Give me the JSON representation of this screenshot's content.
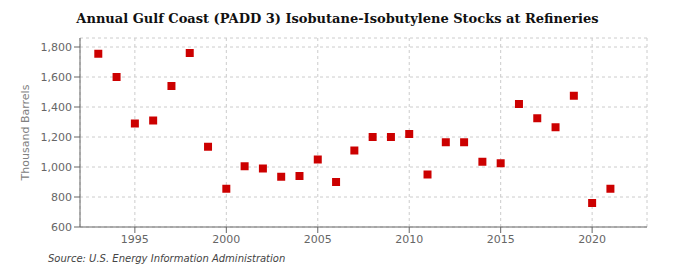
{
  "chart_data": {
    "type": "scatter",
    "title": "Annual Gulf Coast (PADD 3) Isobutane-Isobutylene Stocks at Refineries",
    "ylabel": "Thousand Barrels",
    "annotations": [
      "Source: U.S. Energy Information Administration"
    ],
    "x": [
      1993,
      1994,
      1995,
      1996,
      1997,
      1998,
      1999,
      2000,
      2001,
      2002,
      2003,
      2004,
      2005,
      2006,
      2007,
      2008,
      2009,
      2010,
      2011,
      2012,
      2013,
      2014,
      2015,
      2016,
      2017,
      2018,
      2019,
      2020,
      2021
    ],
    "values": [
      1755,
      1600,
      1290,
      1310,
      1540,
      1760,
      1135,
      855,
      1005,
      990,
      935,
      940,
      1050,
      900,
      1110,
      1200,
      1200,
      1220,
      950,
      1165,
      1165,
      1035,
      1025,
      1420,
      1325,
      1265,
      1475,
      760,
      855
    ],
    "color": "#cc0000",
    "marker": "square",
    "xlim": [
      1992.0,
      2023.0
    ],
    "xticks": [
      1995,
      2000,
      2005,
      2010,
      2015,
      2020
    ],
    "ylim": [
      600,
      1860
    ],
    "yticks": [
      600,
      800,
      {
        "value": 1000,
        "label": "1,000"
      },
      {
        "value": 1200,
        "label": "1,200"
      },
      {
        "value": 1400,
        "label": "1,400"
      },
      {
        "value": 1600,
        "label": "1,600"
      },
      {
        "value": 1800,
        "label": "1,800"
      }
    ],
    "grid": true
  }
}
